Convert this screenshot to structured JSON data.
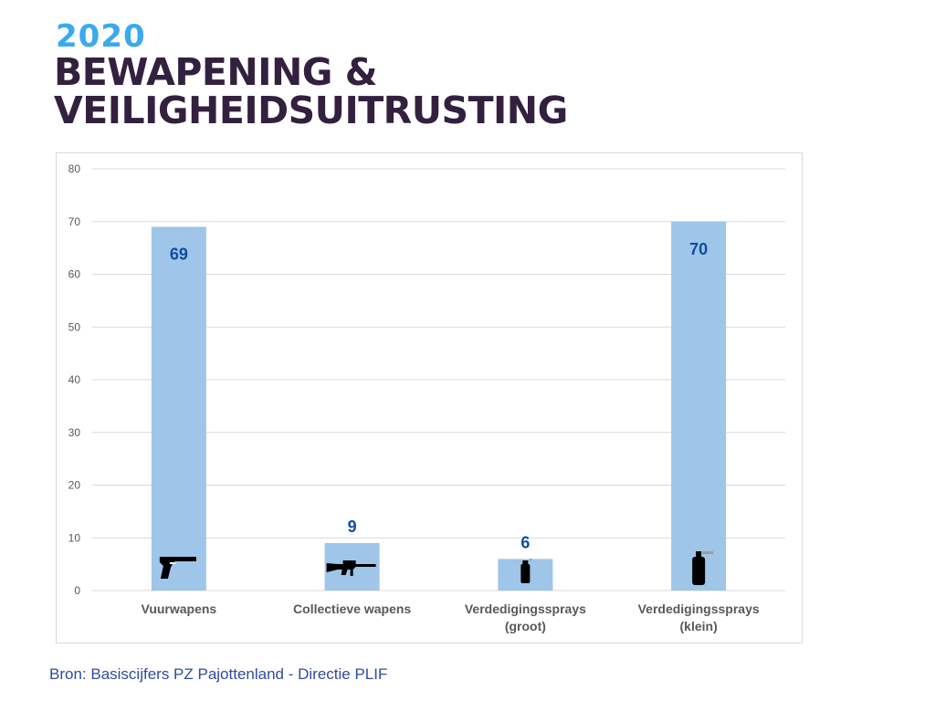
{
  "header": {
    "year": "2020",
    "title_line1": "BEWAPENING &",
    "title_line2": "VEILIGHEIDSUITRUSTING"
  },
  "source": "Bron: Basiscijfers PZ Pajottenland - Directie PLIF",
  "colors": {
    "bar": "#9fc5e8",
    "label": "#0b4ea2",
    "grid": "#d9d9d9",
    "axis_text": "#595959"
  },
  "chart_data": {
    "type": "bar",
    "title": "",
    "xlabel": "",
    "ylabel": "",
    "ylim": [
      0,
      80
    ],
    "yticks": [
      0,
      10,
      20,
      30,
      40,
      50,
      60,
      70,
      80
    ],
    "grid": true,
    "categories": [
      [
        "Vuurwapens"
      ],
      [
        "Collectieve wapens"
      ],
      [
        "Verdedigingssprays",
        "(groot)"
      ],
      [
        "Verdedigingssprays",
        "(klein)"
      ]
    ],
    "values": [
      69,
      9,
      6,
      70
    ],
    "icons": [
      "pistol-icon",
      "rifle-icon",
      "spray-can-large-icon",
      "spray-can-small-icon"
    ]
  }
}
